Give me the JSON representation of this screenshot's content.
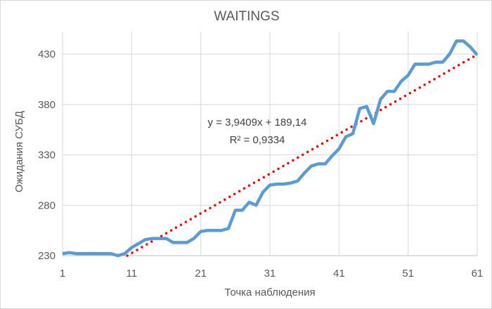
{
  "chart_data": {
    "type": "line",
    "title": "WAITINGS",
    "xlabel": "Точка наблюдения",
    "ylabel": "Ожидания СУБД",
    "xlim": [
      1,
      61
    ],
    "ylim": [
      230,
      452
    ],
    "x_ticks": [
      1,
      11,
      21,
      31,
      41,
      51,
      61
    ],
    "y_ticks": [
      230,
      280,
      330,
      380,
      430
    ],
    "grid": true,
    "series": [
      {
        "name": "WAITINGS",
        "color": "#5B9BD5",
        "values": [
          232,
          233,
          232,
          232,
          232,
          232,
          232,
          232,
          230,
          232,
          238,
          242,
          246,
          247,
          247,
          247,
          243,
          243,
          243,
          247,
          254,
          255,
          255,
          255,
          257,
          275,
          275,
          283,
          280,
          293,
          300,
          301,
          301,
          302,
          304,
          312,
          319,
          321,
          321,
          329,
          336,
          348,
          351,
          376,
          378,
          361,
          385,
          393,
          393,
          403,
          409,
          420,
          420,
          420,
          422,
          422,
          430,
          443,
          443,
          437,
          429
        ]
      }
    ],
    "trendline": {
      "type": "linear",
      "slope": 3.9409,
      "intercept": 189.14,
      "color": "#FF0000",
      "equation": "y = 3,9409x + 189,14",
      "r2": "R² = 0,9334"
    }
  }
}
